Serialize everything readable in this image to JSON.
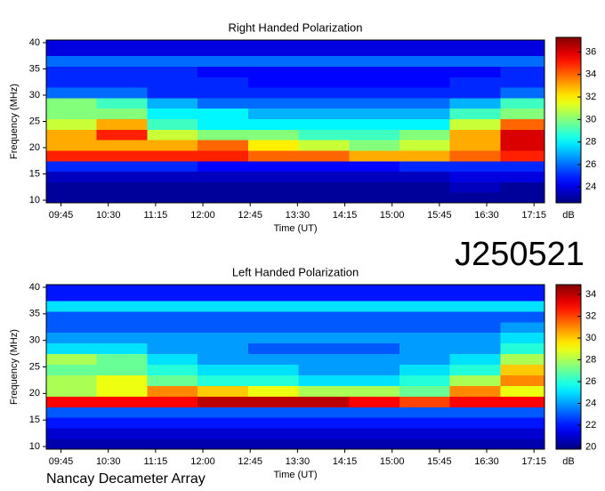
{
  "chart_data": [
    {
      "type": "heatmap",
      "title": "Right Handed Polarization",
      "x_label": "Time (UT)",
      "y_label": "Frequency (MHz)",
      "colormap": "jet",
      "colorbar_label": "dB",
      "xlim": [
        571,
        1045
      ],
      "ylim": [
        9.5,
        40.5
      ],
      "xticks": [
        {
          "value": 585,
          "label": "09:45"
        },
        {
          "value": 630,
          "label": "10:30"
        },
        {
          "value": 675,
          "label": "11:15"
        },
        {
          "value": 720,
          "label": "12:00"
        },
        {
          "value": 765,
          "label": "12:45"
        },
        {
          "value": 810,
          "label": "13:30"
        },
        {
          "value": 855,
          "label": "14:15"
        },
        {
          "value": 900,
          "label": "15:00"
        },
        {
          "value": 945,
          "label": "15:45"
        },
        {
          "value": 990,
          "label": "16:30"
        },
        {
          "value": 1035,
          "label": "17:15"
        }
      ],
      "yticks": [
        10,
        15,
        20,
        25,
        30,
        35,
        40
      ],
      "zlim": [
        22.6,
        37.3
      ],
      "zticks": [
        24,
        26,
        28,
        30,
        32,
        34,
        36
      ],
      "xbins": [
        571,
        619,
        667,
        715,
        763,
        811,
        859,
        907,
        955,
        1003,
        1045
      ],
      "ybins": [
        9.5,
        11.5,
        13.5,
        15.5,
        17.5,
        19.5,
        21.5,
        23.5,
        25.5,
        27.5,
        29.5,
        31.5,
        33.5,
        35.5,
        37.5,
        40.5
      ],
      "z": [
        [
          23,
          23,
          23,
          23,
          23,
          23,
          23,
          23,
          23,
          23
        ],
        [
          23,
          23,
          23,
          23,
          23,
          23,
          23,
          23,
          23.5,
          23
        ],
        [
          23.5,
          23.5,
          23.5,
          23.5,
          23.5,
          23.5,
          23.5,
          23.5,
          24,
          24
        ],
        [
          25,
          25,
          25,
          24.5,
          24.5,
          24.5,
          24.5,
          25,
          25,
          25
        ],
        [
          35,
          35,
          35,
          35,
          34,
          34,
          33,
          33,
          34,
          35
        ],
        [
          33,
          33,
          33,
          34,
          32,
          31,
          30,
          31,
          33,
          36
        ],
        [
          33,
          35,
          31,
          30,
          30,
          29,
          29,
          30,
          33,
          36
        ],
        [
          31,
          33,
          29,
          28,
          28,
          28,
          28,
          28,
          31,
          34
        ],
        [
          30,
          30,
          28,
          28,
          27,
          27,
          27,
          27,
          29,
          30
        ],
        [
          30,
          29,
          27,
          26,
          26,
          26,
          26,
          26,
          27,
          29
        ],
        [
          26,
          26,
          25,
          25,
          25,
          25,
          25,
          25,
          25,
          26
        ],
        [
          25,
          25,
          25,
          25,
          24.5,
          24.5,
          24.5,
          24.5,
          25,
          25
        ],
        [
          25,
          25,
          25,
          24.5,
          24.5,
          24.5,
          24.5,
          24.5,
          24.5,
          25
        ],
        [
          26,
          26,
          26,
          26,
          26,
          26,
          26,
          26,
          26,
          26
        ],
        [
          24,
          24,
          24,
          24,
          24,
          24,
          24,
          24,
          24,
          24
        ]
      ]
    },
    {
      "type": "heatmap",
      "title": "Left Handed Polarization",
      "x_label": "Time (UT)",
      "y_label": "Frequency (MHz)",
      "colormap": "jet",
      "colorbar_label": "dB",
      "xlim": [
        571,
        1045
      ],
      "ylim": [
        9.5,
        40.5
      ],
      "xticks": [
        {
          "value": 585,
          "label": "09:45"
        },
        {
          "value": 630,
          "label": "10:30"
        },
        {
          "value": 675,
          "label": "11:15"
        },
        {
          "value": 720,
          "label": "12:00"
        },
        {
          "value": 765,
          "label": "12:45"
        },
        {
          "value": 810,
          "label": "13:30"
        },
        {
          "value": 855,
          "label": "14:15"
        },
        {
          "value": 900,
          "label": "15:00"
        },
        {
          "value": 945,
          "label": "15:45"
        },
        {
          "value": 990,
          "label": "16:30"
        },
        {
          "value": 1035,
          "label": "17:15"
        }
      ],
      "yticks": [
        10,
        15,
        20,
        25,
        30,
        35,
        40
      ],
      "zlim": [
        19.8,
        34.9
      ],
      "zticks": [
        20,
        22,
        24,
        26,
        28,
        30,
        32,
        34
      ],
      "xbins": [
        571,
        619,
        667,
        715,
        763,
        811,
        859,
        907,
        955,
        1003,
        1045
      ],
      "ybins": [
        9.5,
        11.5,
        13.5,
        15.5,
        17.5,
        19.5,
        21.5,
        23.5,
        25.5,
        27.5,
        29.5,
        31.5,
        33.5,
        35.5,
        37.5,
        40.5
      ],
      "z": [
        [
          20.5,
          20.5,
          20.5,
          20.5,
          20.5,
          20.5,
          20.5,
          20.5,
          20.5,
          20.5
        ],
        [
          21,
          21,
          21,
          21,
          21,
          21,
          21,
          21,
          21,
          21
        ],
        [
          22,
          22,
          22,
          22,
          22,
          22,
          22,
          22,
          22,
          22
        ],
        [
          23,
          23,
          23,
          23,
          23,
          23,
          23,
          23,
          23,
          23
        ],
        [
          33,
          33,
          33,
          34,
          34,
          34,
          33,
          32,
          33,
          33
        ],
        [
          28,
          29,
          31,
          30,
          29,
          28,
          28,
          27,
          31,
          29
        ],
        [
          28,
          29,
          27,
          26,
          26,
          25,
          25,
          26,
          28,
          31
        ],
        [
          27,
          27,
          26,
          25,
          25,
          24,
          24,
          25,
          26,
          30
        ],
        [
          28,
          27,
          25,
          24,
          24,
          24,
          24,
          24,
          25,
          28
        ],
        [
          25,
          25,
          24,
          24,
          23,
          23,
          23,
          24,
          24,
          26
        ],
        [
          24,
          24,
          24,
          24,
          24,
          24,
          24,
          24,
          24,
          25
        ],
        [
          23,
          23,
          23,
          23,
          23,
          23,
          23,
          23,
          23,
          24
        ],
        [
          23,
          23,
          23,
          23,
          23,
          23,
          23,
          23,
          23,
          23
        ],
        [
          25,
          25,
          25,
          25,
          25,
          25,
          25,
          25,
          25,
          25
        ],
        [
          22,
          22,
          22,
          22,
          22,
          22,
          22,
          22,
          22,
          22
        ]
      ]
    }
  ],
  "label": "J250521",
  "footer": "Nancay Decameter Array"
}
